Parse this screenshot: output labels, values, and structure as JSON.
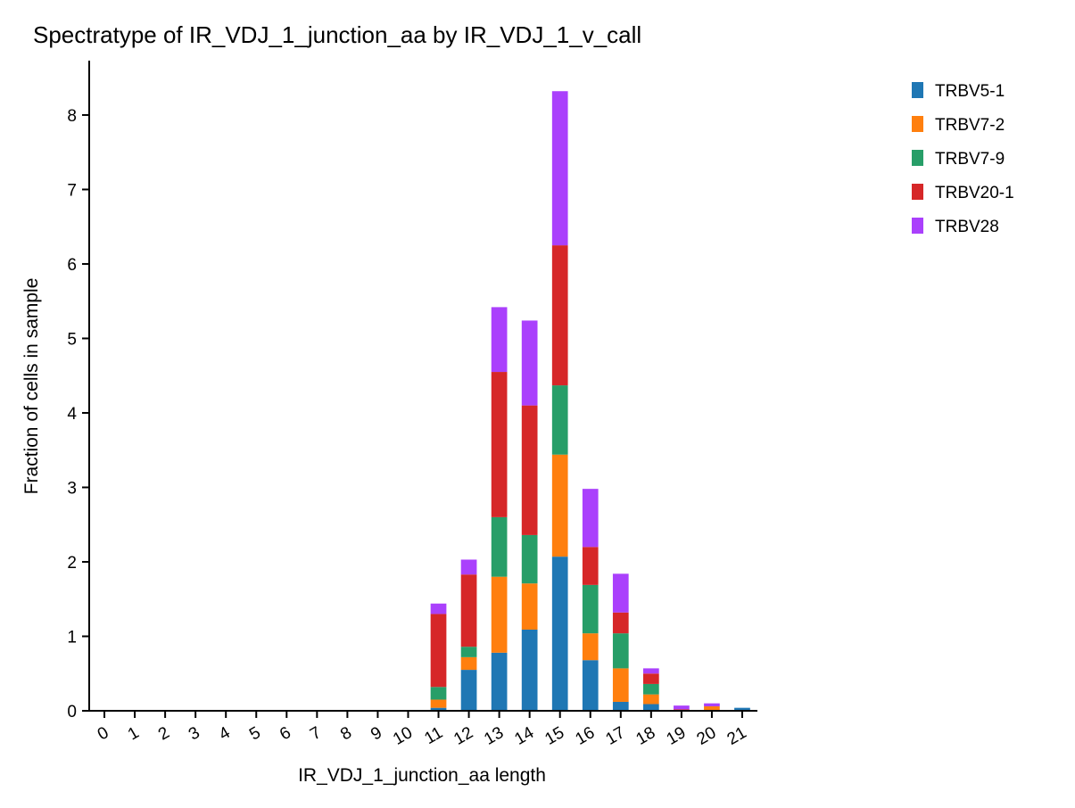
{
  "chart_data": {
    "type": "bar",
    "stacked": true,
    "title": "Spectratype of IR_VDJ_1_junction_aa by IR_VDJ_1_v_call",
    "xlabel": "IR_VDJ_1_junction_aa length",
    "ylabel": "Fraction of cells in sample",
    "categories": [
      "0",
      "1",
      "2",
      "3",
      "4",
      "5",
      "6",
      "7",
      "8",
      "9",
      "10",
      "11",
      "12",
      "13",
      "14",
      "15",
      "16",
      "17",
      "18",
      "19",
      "20",
      "21"
    ],
    "yticks": [
      "0",
      "1",
      "2",
      "3",
      "4",
      "5",
      "6",
      "7",
      "8"
    ],
    "ylim": [
      0,
      8.73
    ],
    "legend_position": "top-right, outside plot",
    "grid": false,
    "series": [
      {
        "name": "TRBV5-1",
        "color": "#1f77b4",
        "values": [
          0,
          0,
          0,
          0,
          0,
          0,
          0,
          0,
          0,
          0,
          0,
          0.04,
          0.55,
          0.78,
          1.09,
          2.07,
          0.68,
          0.12,
          0.09,
          0,
          0,
          0.04
        ]
      },
      {
        "name": "TRBV7-2",
        "color": "#ff7f0e",
        "values": [
          0,
          0,
          0,
          0,
          0,
          0,
          0,
          0,
          0,
          0,
          0,
          0.11,
          0.17,
          1.02,
          0.62,
          1.37,
          0.36,
          0.45,
          0.13,
          0,
          0.06,
          0
        ]
      },
      {
        "name": "TRBV7-9",
        "color": "#279e68",
        "values": [
          0,
          0,
          0,
          0,
          0,
          0,
          0,
          0,
          0,
          0,
          0,
          0.17,
          0.14,
          0.8,
          0.65,
          0.93,
          0.65,
          0.47,
          0.14,
          0,
          0,
          0
        ]
      },
      {
        "name": "TRBV20-1",
        "color": "#d62728",
        "values": [
          0,
          0,
          0,
          0,
          0,
          0,
          0,
          0,
          0,
          0,
          0,
          0.98,
          0.97,
          1.95,
          1.74,
          1.88,
          0.51,
          0.28,
          0.14,
          0.02,
          0,
          0
        ]
      },
      {
        "name": "TRBV28",
        "color": "#aa40fc",
        "values": [
          0,
          0,
          0,
          0,
          0,
          0,
          0,
          0,
          0,
          0,
          0,
          0.14,
          0.2,
          0.87,
          1.14,
          2.07,
          0.78,
          0.52,
          0.07,
          0.05,
          0.04,
          0
        ]
      }
    ]
  }
}
